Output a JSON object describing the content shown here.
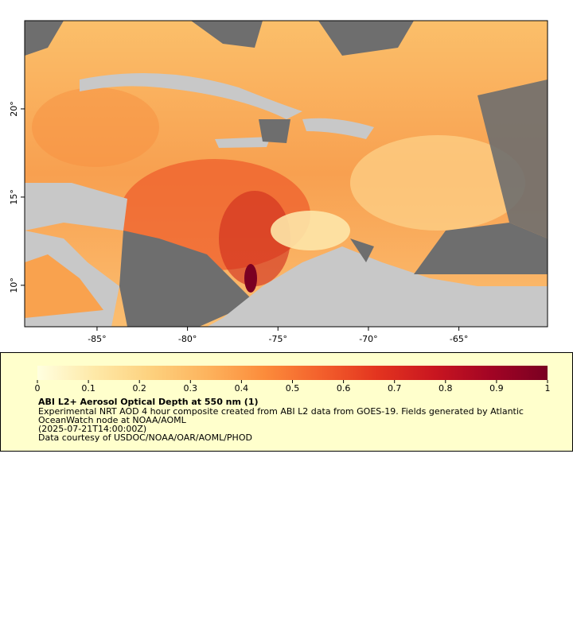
{
  "map": {
    "xlim": [
      -89,
      -60.1
    ],
    "ylim": [
      7.65,
      25
    ],
    "xticks": [
      {
        "value": -85,
        "label": "-85°"
      },
      {
        "value": -80,
        "label": "-80°"
      },
      {
        "value": -75,
        "label": "-75°"
      },
      {
        "value": -70,
        "label": "-70°"
      },
      {
        "value": -65,
        "label": "-65°"
      }
    ],
    "yticks": [
      {
        "value": 10,
        "label": "10°"
      },
      {
        "value": 15,
        "label": "15°"
      },
      {
        "value": 20,
        "label": "20°"
      }
    ]
  },
  "legend": {
    "colorbar": {
      "lim": [
        0,
        1
      ],
      "ticks": [
        0,
        0.1,
        0.2,
        0.3,
        0.4,
        0.5,
        0.6,
        0.7,
        0.8,
        0.9,
        1
      ],
      "colors": [
        "#ffffe0",
        "#fee9a8",
        "#fdd17e",
        "#fdb35d",
        "#fc8c3b",
        "#f3602c",
        "#e3341f",
        "#c91620",
        "#a20424",
        "#7a0022"
      ]
    },
    "title": "ABI L2+ Aerosol Optical Depth at 550 nm (1)",
    "description": [
      "Experimental NRT AOD 4 hour composite created from ABI L2 data from GOES-19. Fields generated by Atlantic",
      "OceanWatch node at NOAA/AOML"
    ],
    "time": "(2025-07-21T14:00:00Z)",
    "credit": "Data courtesy of USDOC/NOAA/OAR/AOML/PHOD"
  }
}
